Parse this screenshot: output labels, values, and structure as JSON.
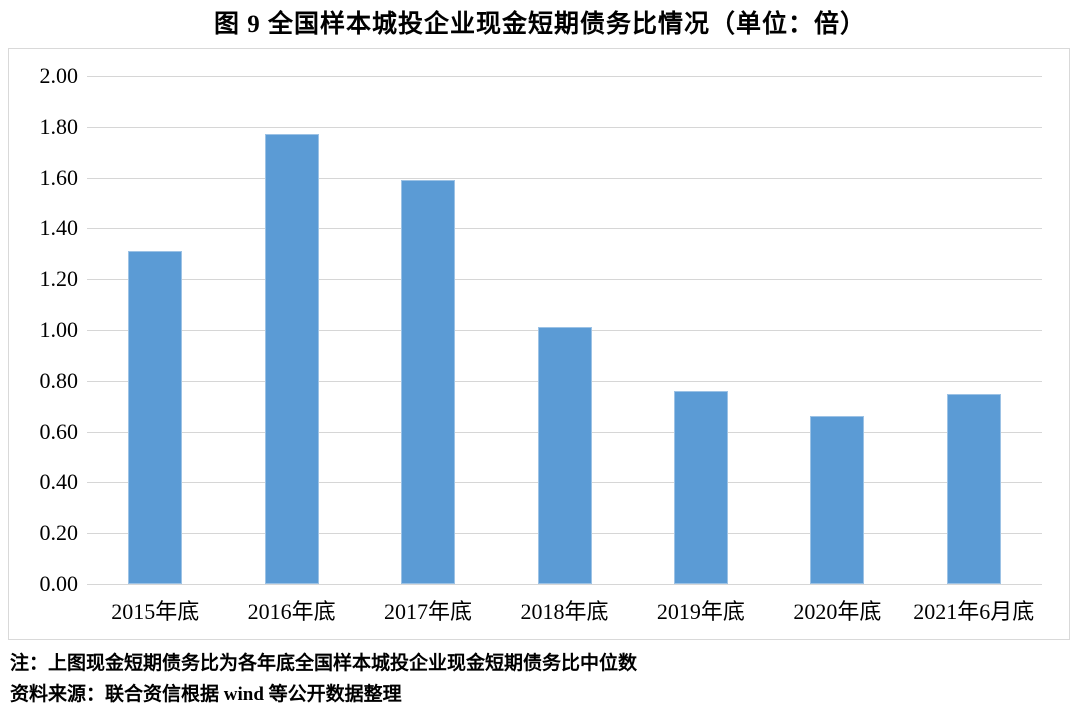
{
  "page": {
    "title": "图 9  全国样本城投企业现金短期债务比情况（单位：倍）",
    "note_line1": "注：上图现金短期债务比为各年底全国样本城投企业现金短期债务比中位数",
    "note_line2": "资料来源：联合资信根据 wind 等公开数据整理"
  },
  "chart_data": {
    "type": "bar",
    "title": "图 9  全国样本城投企业现金短期债务比情况（单位：倍）",
    "unit": "倍",
    "categories": [
      "2015年底",
      "2016年底",
      "2017年底",
      "2018年底",
      "2019年底",
      "2020年底",
      "2021年6月底"
    ],
    "values": [
      1.31,
      1.77,
      1.59,
      1.01,
      0.76,
      0.66,
      0.75
    ],
    "xlabel": "",
    "ylabel": "",
    "ylim": [
      0,
      2.0
    ],
    "ytick_step": 0.2,
    "ytick_labels": [
      "0.00",
      "0.20",
      "0.40",
      "0.60",
      "0.80",
      "1.00",
      "1.20",
      "1.40",
      "1.60",
      "1.80",
      "2.00"
    ],
    "grid": true,
    "legend": "none",
    "bar_color": "#5B9BD5",
    "bar_edge_color": "#9CC2E5",
    "gridline_color": "#D6D6D6",
    "border_color": "#D9D9D9"
  }
}
